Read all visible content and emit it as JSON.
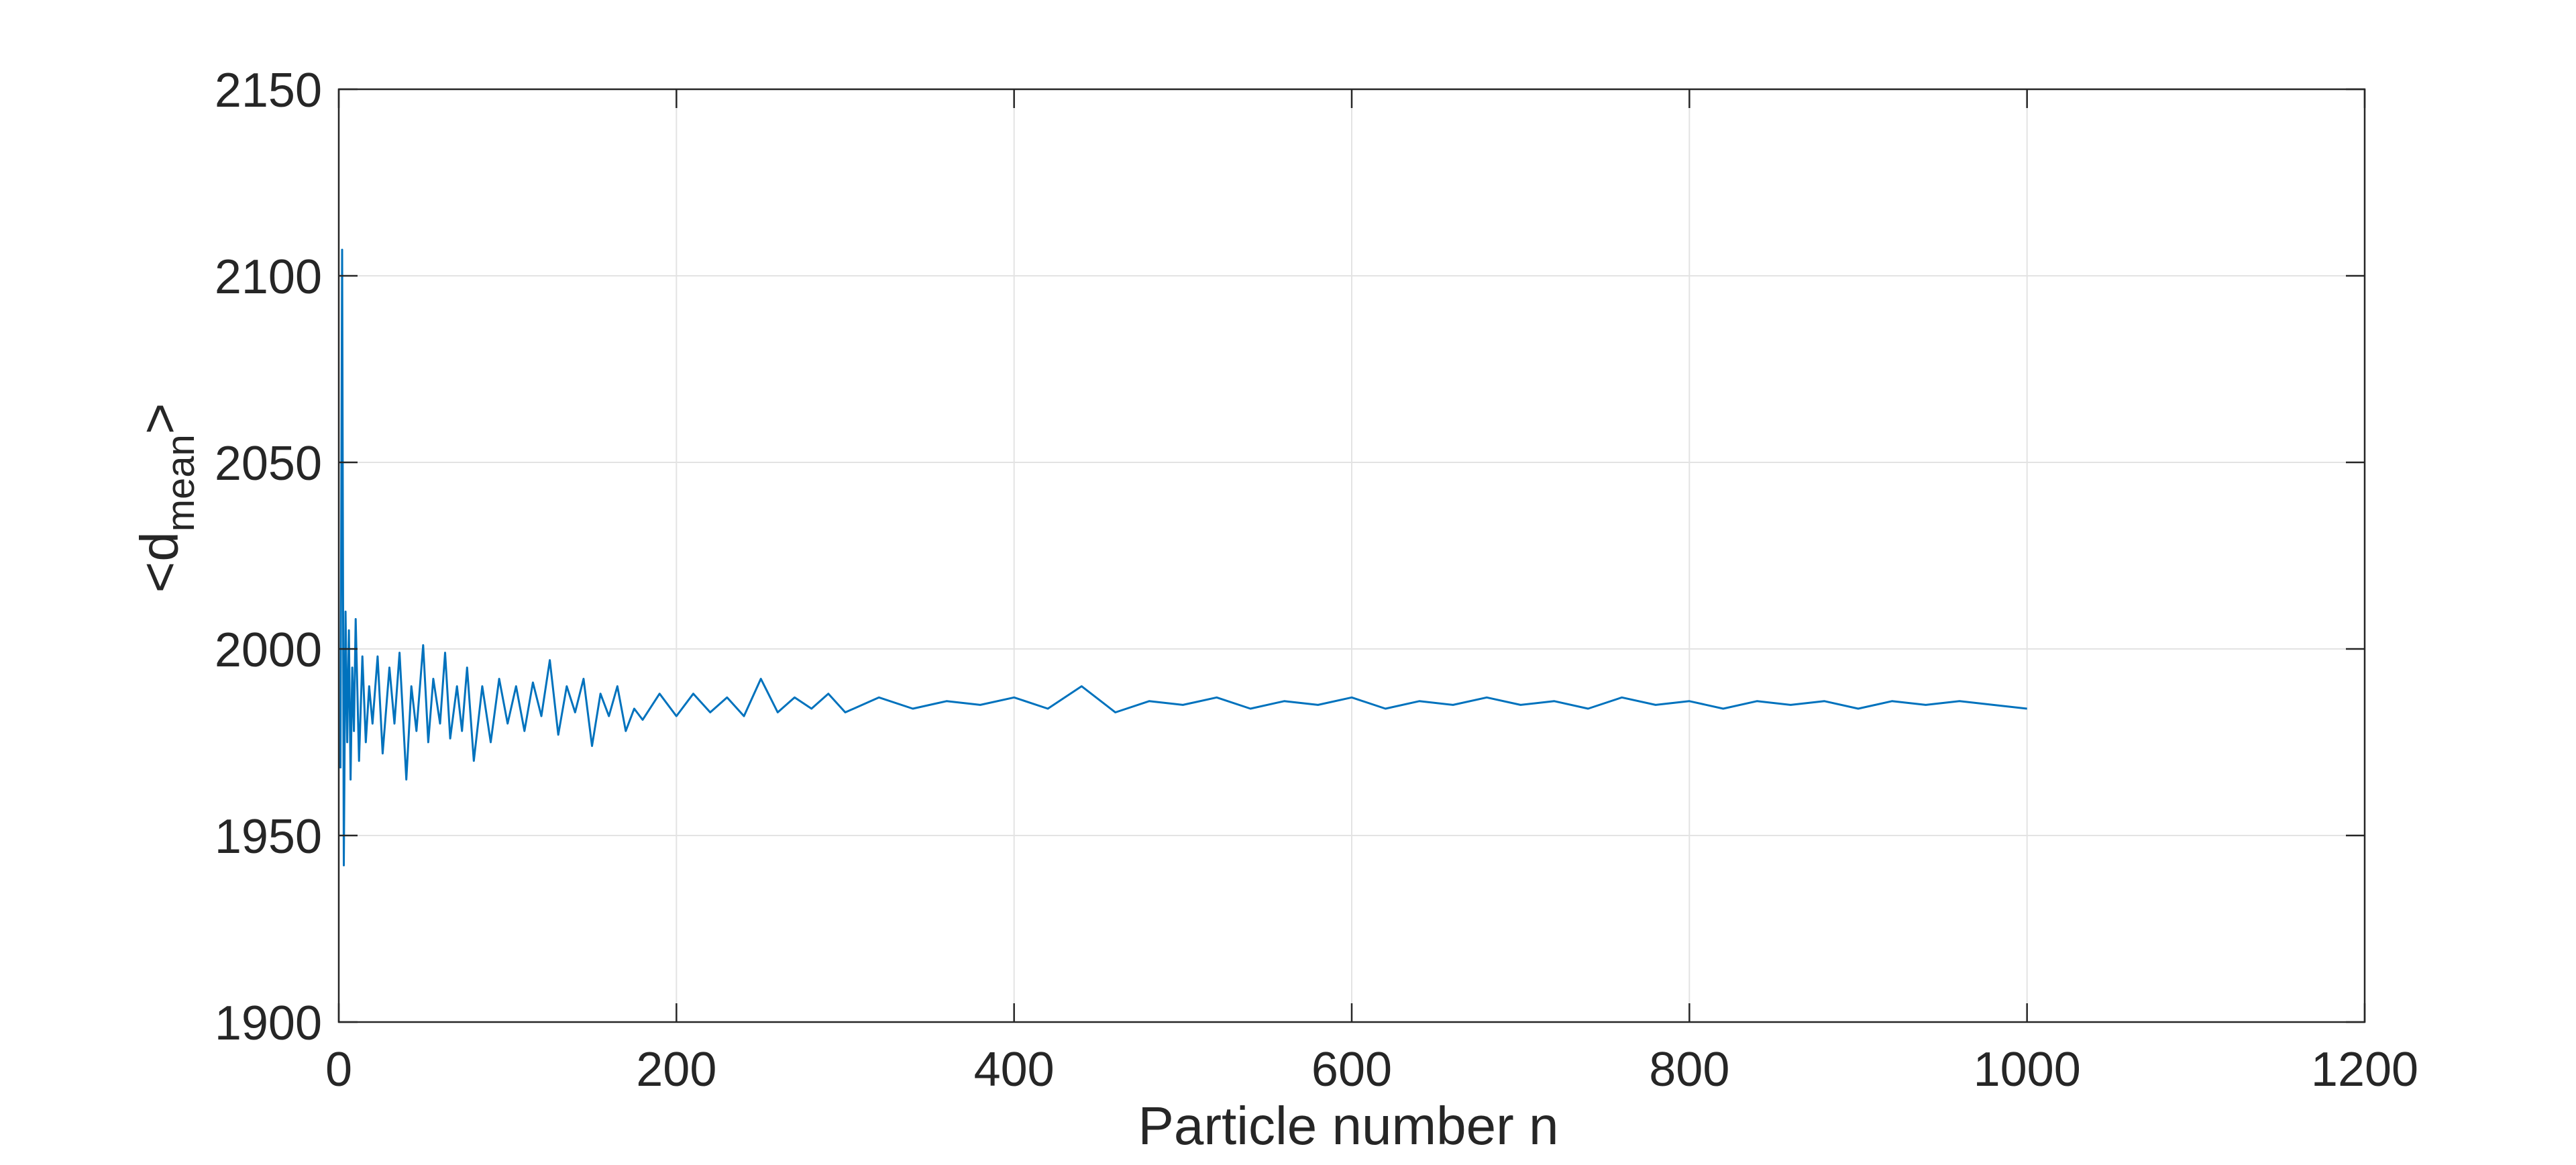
{
  "chart_data": {
    "type": "line",
    "title": "",
    "xlabel": "Particle number n",
    "ylabel": {
      "prefix": "<d",
      "subscript": "mean",
      "suffix": ">"
    },
    "xlim": [
      0,
      1200
    ],
    "ylim": [
      1900,
      2150
    ],
    "xticks": [
      0,
      200,
      400,
      600,
      800,
      1000,
      1200
    ],
    "yticks": [
      1900,
      1950,
      2000,
      2050,
      2100,
      2150
    ],
    "xtick_labels": [
      "0",
      "200",
      "400",
      "600",
      "800",
      "1000",
      "1200"
    ],
    "ytick_labels": [
      "1900",
      "1950",
      "2000",
      "2050",
      "2100",
      "2150"
    ],
    "grid": true,
    "line_color": "#0072BD",
    "series": [
      {
        "x": [
          1,
          2,
          3,
          4,
          5,
          6,
          7,
          8,
          9,
          10,
          12,
          14,
          16,
          18,
          20,
          23,
          26,
          30,
          33,
          36,
          40,
          43,
          46,
          50,
          53,
          56,
          60,
          63,
          66,
          70,
          73,
          76,
          80,
          85,
          90,
          95,
          100,
          105,
          110,
          115,
          120,
          125,
          130,
          135,
          140,
          145,
          150,
          155,
          160,
          165,
          170,
          175,
          180,
          190,
          200,
          210,
          220,
          230,
          240,
          250,
          260,
          270,
          280,
          290,
          300,
          320,
          340,
          360,
          380,
          400,
          420,
          440,
          460,
          480,
          500,
          520,
          540,
          560,
          580,
          600,
          620,
          640,
          660,
          680,
          700,
          720,
          740,
          760,
          780,
          800,
          820,
          840,
          860,
          880,
          900,
          920,
          940,
          960,
          980,
          1000
        ],
        "y": [
          1968,
          2107,
          1942,
          2010,
          1975,
          2005,
          1965,
          1995,
          1978,
          2008,
          1970,
          1998,
          1975,
          1990,
          1980,
          1998,
          1972,
          1995,
          1980,
          1999,
          1965,
          1990,
          1978,
          2001,
          1975,
          1992,
          1980,
          1999,
          1976,
          1990,
          1978,
          1995,
          1970,
          1990,
          1975,
          1992,
          1980,
          1990,
          1978,
          1991,
          1982,
          1997,
          1977,
          1990,
          1983,
          1992,
          1974,
          1988,
          1982,
          1990,
          1978,
          1984,
          1981,
          1988,
          1982,
          1988,
          1983,
          1987,
          1982,
          1992,
          1983,
          1987,
          1984,
          1988,
          1983,
          1987,
          1984,
          1986,
          1985,
          1987,
          1984,
          1990,
          1983,
          1986,
          1985,
          1987,
          1984,
          1986,
          1985,
          1987,
          1984,
          1986,
          1985,
          1987,
          1985,
          1986,
          1984,
          1987,
          1985,
          1986,
          1984,
          1986,
          1985,
          1986,
          1984,
          1986,
          1985,
          1986,
          1985,
          1984
        ]
      }
    ]
  }
}
